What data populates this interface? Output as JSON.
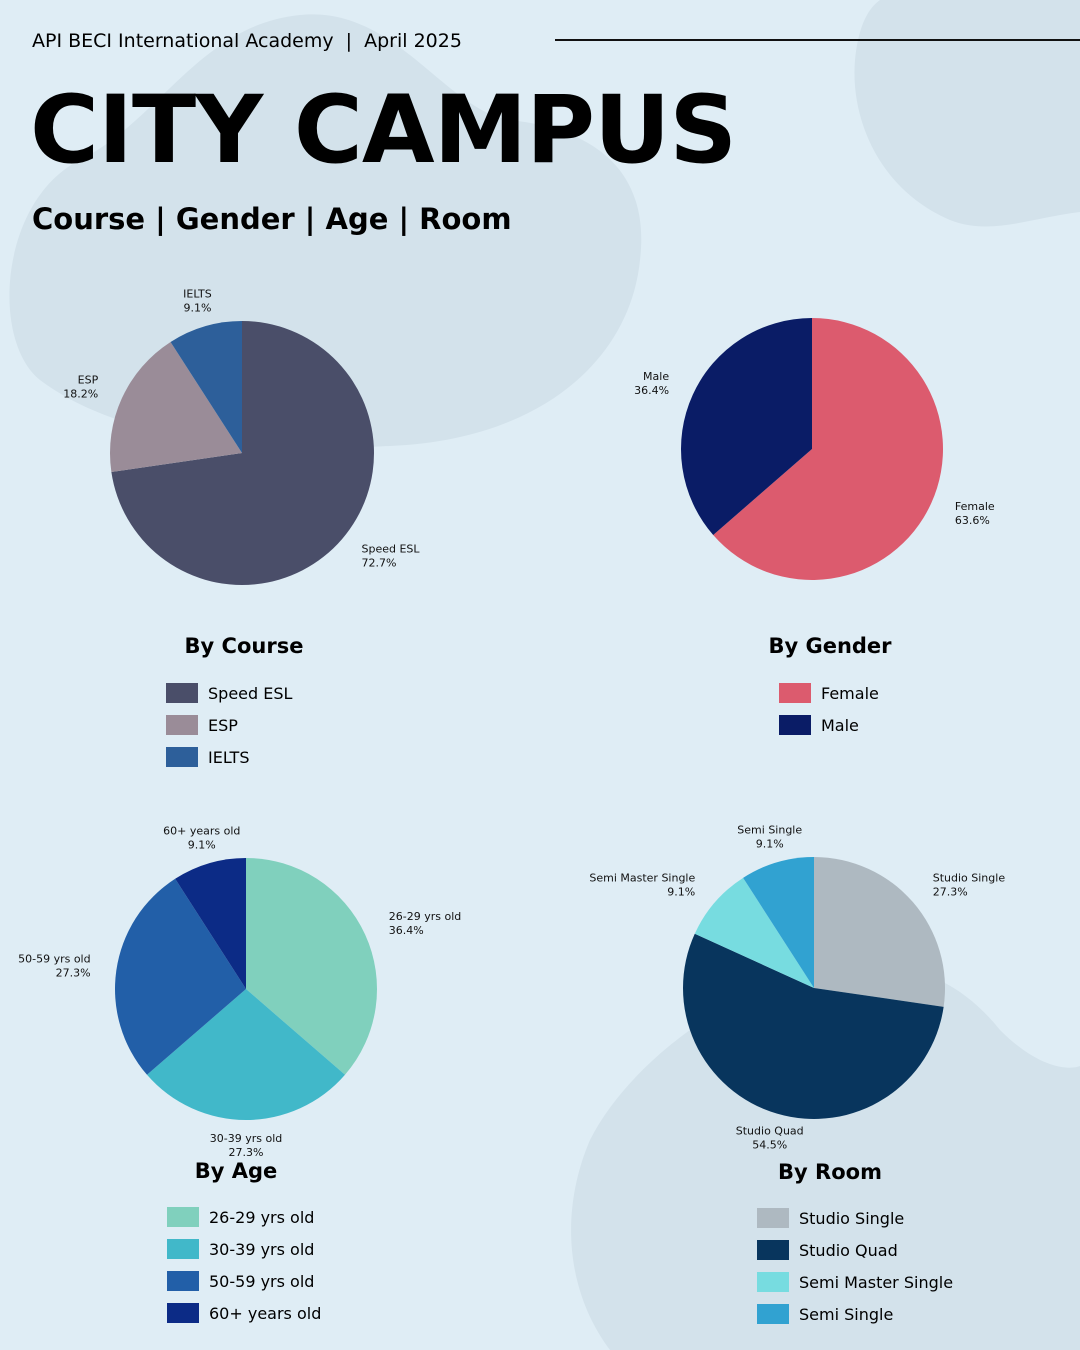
{
  "header": {
    "organization": "API BECI International Academy",
    "separator": "|",
    "date": "April 2025",
    "title": "CITY CAMPUS",
    "subtitle": "Course | Gender | Age | Room"
  },
  "colors": {
    "background": "#dfedf5",
    "blob": "#d3e2eb"
  },
  "chart_data": [
    {
      "type": "pie",
      "title": "By Course",
      "categories": [
        "Speed ESL",
        "ESP",
        "IELTS"
      ],
      "values": [
        72.7,
        18.2,
        9.1
      ],
      "labels": [
        "72.7%",
        "18.2%",
        "9.1%"
      ],
      "colors": [
        "#4a4e69",
        "#9a8c98",
        "#2d5f9a"
      ],
      "legend": "bottom"
    },
    {
      "type": "pie",
      "title": "By Gender",
      "categories": [
        "Female",
        "Male"
      ],
      "values": [
        63.6,
        36.4
      ],
      "labels": [
        "63.6%",
        "36.4%"
      ],
      "colors": [
        "#dc5b6e",
        "#0a1c66"
      ],
      "legend": "bottom"
    },
    {
      "type": "pie",
      "title": "By Age",
      "categories": [
        "26-29 yrs old",
        "30-39 yrs old",
        "50-59 yrs old",
        "60+ years old"
      ],
      "values": [
        36.4,
        27.3,
        27.3,
        9.1
      ],
      "labels": [
        "36.4%",
        "27.3%",
        "27.3%",
        "9.1%"
      ],
      "colors": [
        "#80d0bd",
        "#41b8c9",
        "#225fa8",
        "#0c2b86"
      ],
      "legend": "bottom"
    },
    {
      "type": "pie",
      "title": "By Room",
      "categories": [
        "Studio Single",
        "Studio Quad",
        "Semi Master Single",
        "Semi Single"
      ],
      "values": [
        27.3,
        54.5,
        9.1,
        9.1
      ],
      "labels": [
        "27.3%",
        "54.5%",
        "9.1%",
        "9.1%"
      ],
      "colors": [
        "#aeb9c1",
        "#08355d",
        "#77dce0",
        "#31a2d1"
      ],
      "legend": "bottom"
    }
  ]
}
